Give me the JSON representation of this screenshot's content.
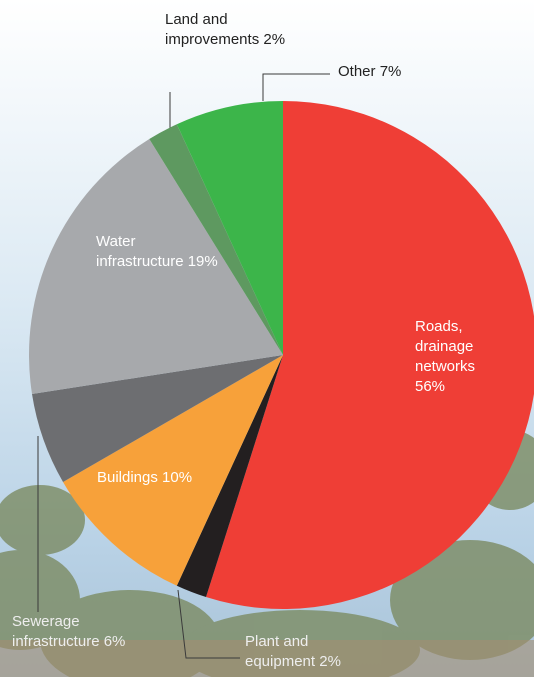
{
  "chart_data": {
    "type": "pie",
    "categories": [
      "Roads, drainage networks",
      "Plant and equipment",
      "Buildings",
      "Sewerage infrastructure",
      "Water infrastructure",
      "Land and improvements",
      "Other"
    ],
    "values": [
      56,
      2,
      10,
      6,
      19,
      2,
      7
    ],
    "value_labels": [
      "56%",
      "2%",
      "10%",
      "6%",
      "19%",
      "2%",
      "7%"
    ],
    "colors": [
      "#ef3e36",
      "#231f20",
      "#f7a13a",
      "#6d6e71",
      "#a7a9ac",
      "#5e9960",
      "#3cb54a"
    ]
  }
}
